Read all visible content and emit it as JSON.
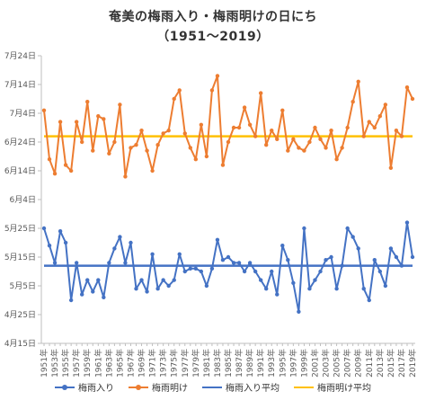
{
  "chart_data": {
    "type": "line",
    "title": "奄美の梅雨入り・梅雨明けの日にち",
    "subtitle": "（1951～2019）",
    "y_ticks": [
      "4月15日",
      "4月25日",
      "5月5日",
      "5月15日",
      "5月25日",
      "6月4日",
      "6月14日",
      "6月24日",
      "7月4日",
      "7月14日",
      "7月24日"
    ],
    "y_tick_days": [
      105,
      115,
      125,
      135,
      145,
      155,
      165,
      175,
      185,
      195,
      205
    ],
    "ylim_days": [
      105,
      205
    ],
    "x_tick_labels": [
      "1951年",
      "1953年",
      "1955年",
      "1957年",
      "1959年",
      "1961年",
      "1963年",
      "1965年",
      "1967年",
      "1969年",
      "1971年",
      "1973年",
      "1975年",
      "1977年",
      "1979年",
      "1981年",
      "1983年",
      "1985年",
      "1987年",
      "1989年",
      "1991年",
      "1993年",
      "1995年",
      "1997年",
      "1999年",
      "2001年",
      "2003年",
      "2005年",
      "2007年",
      "2009年",
      "2011年",
      "2013年",
      "2015年",
      "2017年",
      "2019年"
    ],
    "x": [
      1951,
      1952,
      1953,
      1954,
      1955,
      1956,
      1957,
      1958,
      1959,
      1960,
      1961,
      1962,
      1963,
      1964,
      1965,
      1966,
      1967,
      1968,
      1969,
      1970,
      1971,
      1972,
      1973,
      1974,
      1975,
      1976,
      1977,
      1978,
      1979,
      1980,
      1981,
      1982,
      1983,
      1984,
      1985,
      1986,
      1987,
      1988,
      1989,
      1990,
      1991,
      1992,
      1993,
      1994,
      1995,
      1996,
      1997,
      1998,
      1999,
      2000,
      2001,
      2002,
      2003,
      2004,
      2005,
      2006,
      2007,
      2008,
      2009,
      2010,
      2011,
      2012,
      2013,
      2014,
      2015,
      2016,
      2017,
      2018,
      2019
    ],
    "series": [
      {
        "name": "梅雨入り",
        "color": "#4472c4",
        "marker": "circle",
        "unit": "day_of_year",
        "values": [
          145,
          139,
          133,
          144,
          140,
          120,
          133,
          122,
          127,
          123,
          127,
          121,
          133,
          138,
          142,
          133,
          140,
          124,
          127,
          123,
          136,
          124,
          127,
          125,
          127,
          136,
          130,
          131,
          131,
          130,
          125,
          131,
          141,
          134,
          135,
          133,
          133,
          130,
          133,
          130,
          127,
          124,
          130,
          122,
          139,
          134,
          126,
          116,
          145,
          124,
          127,
          130,
          134,
          135,
          124,
          132,
          145,
          142,
          138,
          124,
          120,
          134,
          130,
          125,
          138,
          135,
          132,
          147,
          135
        ]
      },
      {
        "name": "梅雨明け",
        "color": "#ed7d31",
        "marker": "circle",
        "unit": "day_of_year",
        "values": [
          186,
          169,
          164,
          182,
          167,
          165,
          182,
          175,
          189,
          172,
          184,
          183,
          171,
          175,
          188,
          163,
          173,
          174,
          179,
          172,
          165,
          174,
          178,
          179,
          190,
          193,
          178,
          173,
          169,
          181,
          170,
          193,
          198,
          167,
          175,
          180,
          180,
          187,
          181,
          177,
          192,
          174,
          179,
          176,
          186,
          172,
          176,
          173,
          172,
          175,
          180,
          176,
          173,
          179,
          169,
          173,
          180,
          189,
          196,
          177,
          182,
          180,
          184,
          188,
          166,
          179,
          177,
          194,
          190
        ]
      }
    ],
    "average_lines": [
      {
        "name": "梅雨入り平均",
        "color": "#4472c4",
        "value": 132
      },
      {
        "name": "梅雨明け平均",
        "color": "#ffc000",
        "value": 177
      }
    ],
    "grid": false,
    "legend_position": "bottom"
  }
}
